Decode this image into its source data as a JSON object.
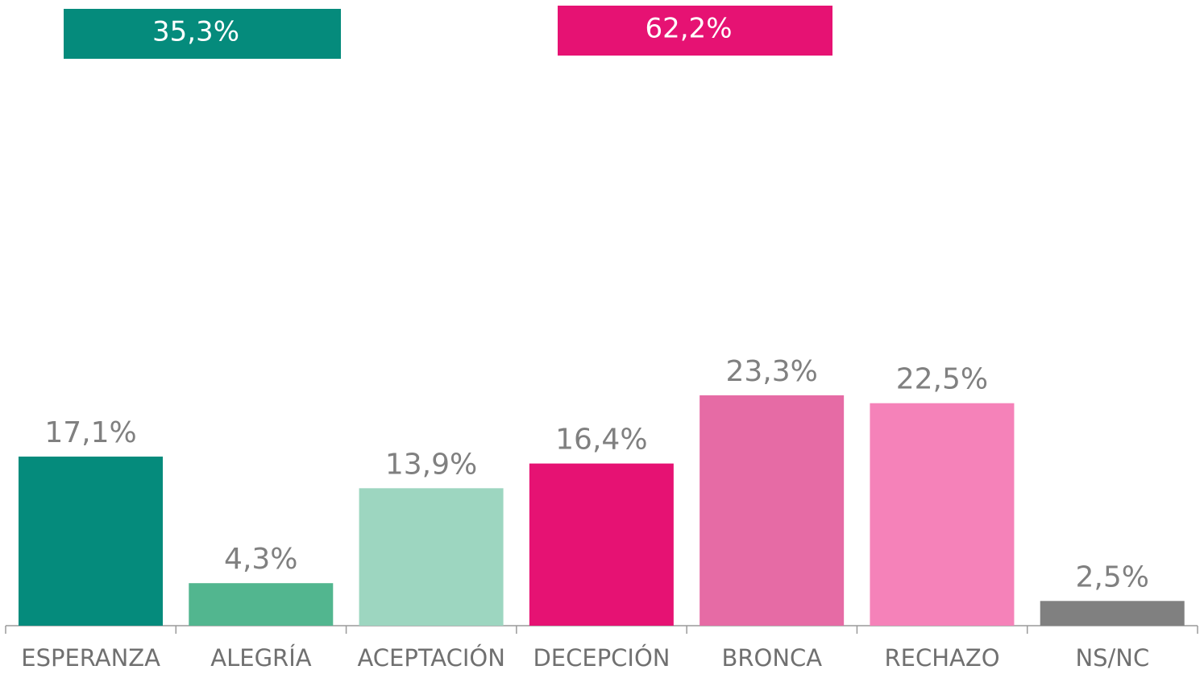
{
  "chart_data": {
    "type": "bar",
    "categories": [
      "ESPERANZA",
      "ALEGRÍA",
      "ACEPTACIÓN",
      "DECEPCIÓN",
      "BRONCA",
      "RECHAZO",
      "NS/NC"
    ],
    "values": [
      17.1,
      4.3,
      13.9,
      16.4,
      23.3,
      22.5,
      2.5
    ],
    "value_labels": [
      "17,1%",
      "4,3%",
      "13,9%",
      "16,4%",
      "23,3%",
      "22,5%",
      "2,5%"
    ],
    "colors": [
      "#058b7c",
      "#52b68f",
      "#9dd6c0",
      "#e61273",
      "#e66ba5",
      "#f582b9",
      "#808080"
    ],
    "annotations": [
      {
        "text": "35,3%",
        "color": "#058b7c"
      },
      {
        "text": "62,2%",
        "color": "#e61273"
      }
    ]
  }
}
